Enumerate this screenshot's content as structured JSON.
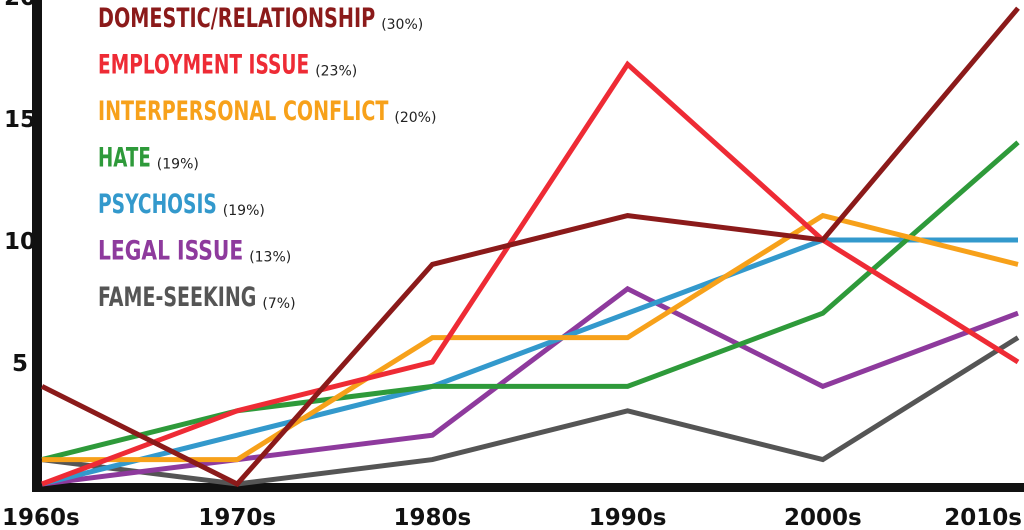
{
  "chart_data": {
    "type": "line",
    "title": "",
    "xlabel": "",
    "ylabel": "",
    "categories": [
      "1960s",
      "1970s",
      "1980s",
      "1990s",
      "2000s",
      "2010s"
    ],
    "ylim": [
      0,
      20
    ],
    "yticks": [
      {
        "value": 20,
        "label": "20"
      },
      {
        "value": 15,
        "label": "15"
      },
      {
        "value": 10,
        "label": "10"
      },
      {
        "value": 5,
        "label": "5"
      }
    ],
    "grid": false,
    "legend_position": "top-left",
    "series": [
      {
        "name": "DOMESTIC/RELATIONSHIP",
        "percent": "(30%)",
        "color": "#8B1A1A",
        "values": [
          4,
          0,
          9,
          11,
          10,
          19.5
        ]
      },
      {
        "name": "EMPLOYMENT ISSUE",
        "percent": "(23%)",
        "color": "#EE2B35",
        "values": [
          0,
          3,
          5,
          17.2,
          10,
          5
        ]
      },
      {
        "name": "INTERPERSONAL CONFLICT",
        "percent": "(20%)",
        "color": "#F7A11A",
        "values": [
          1,
          1,
          6,
          6,
          11,
          9
        ]
      },
      {
        "name": "HATE",
        "percent": "(19%)",
        "color": "#2E9A3A",
        "values": [
          1,
          3,
          4,
          4,
          7,
          14
        ]
      },
      {
        "name": "PSYCHOSIS",
        "percent": "(19%)",
        "color": "#3399CC",
        "values": [
          0,
          2,
          4,
          7,
          10,
          10
        ]
      },
      {
        "name": "LEGAL ISSUE",
        "percent": "(13%)",
        "color": "#8E3A9D",
        "values": [
          0,
          1,
          2,
          8,
          4,
          7
        ]
      },
      {
        "name": "FAME-SEEKING",
        "percent": "(7%)",
        "color": "#555555",
        "values": [
          1,
          0,
          1,
          3,
          1,
          6
        ]
      }
    ]
  }
}
